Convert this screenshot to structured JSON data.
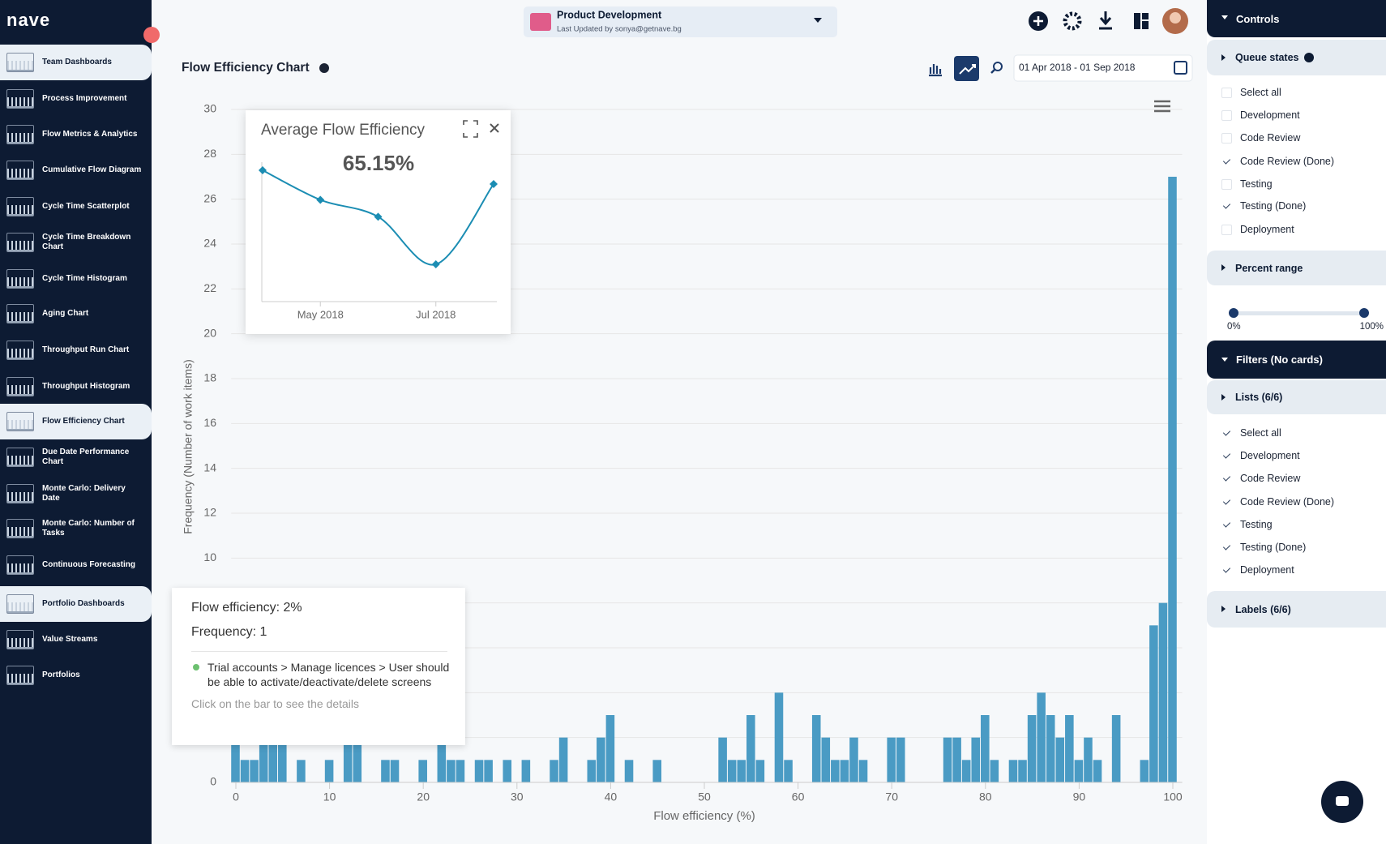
{
  "sidebar": {
    "logo": "nave",
    "items": [
      {
        "label": "Team Dashboards",
        "section": true
      },
      {
        "label": "Process Improvement"
      },
      {
        "label": "Flow Metrics & Analytics"
      },
      {
        "label": "Cumulative Flow Diagram"
      },
      {
        "label": "Cycle Time Scatterplot"
      },
      {
        "label": "Cycle Time Breakdown Chart"
      },
      {
        "label": "Cycle Time Histogram"
      },
      {
        "label": "Aging Chart"
      },
      {
        "label": "Throughput Run Chart"
      },
      {
        "label": "Throughput Histogram"
      },
      {
        "label": "Flow Efficiency Chart",
        "active": true
      },
      {
        "label": "Due Date Performance Chart"
      },
      {
        "label": "Monte Carlo: Delivery Date"
      },
      {
        "label": "Monte Carlo: Number of Tasks"
      },
      {
        "label": "Continuous Forecasting"
      },
      {
        "label": "Portfolio Dashboards",
        "section": true
      },
      {
        "label": "Value Streams"
      },
      {
        "label": "Portfolios"
      }
    ]
  },
  "header": {
    "project": "Product Development",
    "updated": "Last Updated by sonya@getnave.bg"
  },
  "toolbar": {
    "date_range": "01 Apr 2018 - 01 Sep 2018"
  },
  "chart_data": [
    {
      "type": "histogram",
      "title": "Flow Efficiency Chart",
      "x_label": "Flow efficiency (%)",
      "y_label": "Frequency (Number of work items)",
      "color": "#4a9bc4",
      "grid": true,
      "x": [
        0,
        1,
        2,
        3,
        4,
        5,
        6,
        7,
        8,
        9,
        10,
        11,
        12,
        13,
        14,
        15,
        16,
        17,
        18,
        19,
        20,
        21,
        22,
        23,
        24,
        25,
        26,
        27,
        28,
        29,
        30,
        31,
        32,
        33,
        34,
        35,
        36,
        37,
        38,
        39,
        40,
        41,
        42,
        43,
        44,
        45,
        46,
        47,
        48,
        49,
        50,
        51,
        52,
        53,
        54,
        55,
        56,
        57,
        58,
        59,
        60,
        61,
        62,
        63,
        64,
        65,
        66,
        67,
        68,
        69,
        70,
        71,
        72,
        73,
        74,
        75,
        76,
        77,
        78,
        79,
        80,
        81,
        82,
        83,
        84,
        85,
        86,
        87,
        88,
        89,
        90,
        91,
        92,
        93,
        94,
        95,
        96,
        97,
        98,
        99,
        100
      ],
      "values": [
        2,
        1,
        1,
        2,
        2,
        2,
        0,
        1,
        0,
        0,
        1,
        0,
        2,
        2,
        0,
        0,
        1,
        1,
        0,
        0,
        1,
        0,
        2,
        1,
        1,
        0,
        1,
        1,
        0,
        1,
        0,
        1,
        0,
        0,
        1,
        2,
        0,
        0,
        1,
        2,
        3,
        0,
        1,
        0,
        0,
        1,
        0,
        0,
        0,
        0,
        0,
        0,
        2,
        1,
        1,
        3,
        1,
        0,
        4,
        1,
        0,
        0,
        3,
        2,
        1,
        1,
        2,
        1,
        0,
        0,
        2,
        2,
        0,
        0,
        0,
        0,
        2,
        2,
        1,
        2,
        3,
        1,
        0,
        1,
        1,
        3,
        4,
        3,
        2,
        3,
        1,
        2,
        1,
        0,
        3,
        0,
        0,
        1,
        7,
        8,
        27
      ],
      "xlim": [
        -0.5,
        101
      ],
      "xticks": [
        0,
        10,
        20,
        30,
        40,
        50,
        60,
        70,
        80,
        90,
        100
      ],
      "ylim": [
        0,
        30
      ],
      "yticks": [
        0,
        2,
        4,
        6,
        8,
        10,
        12,
        14,
        16,
        18,
        20,
        22,
        24,
        26,
        28,
        30
      ]
    },
    {
      "type": "line",
      "title": "Average Flow Efficiency",
      "summary": "65.15%",
      "color": "#1b8db3",
      "categories": [
        null,
        "May 2018",
        null,
        "Jul 2018",
        null
      ],
      "values": [
        68.2,
        65.4,
        63.8,
        59.3,
        66.9
      ]
    }
  ],
  "tooltip": {
    "line1": "Flow efficiency: 2%",
    "line2": "Frequency: 1",
    "item": "Trial accounts > Manage licences > User should be able to activate/deactivate/delete screens",
    "hint": "Click on the bar to see the details"
  },
  "controls": {
    "title": "Controls",
    "queue_states": {
      "title": "Queue states",
      "items": [
        {
          "label": "Select all",
          "checked": false
        },
        {
          "label": "Development",
          "checked": false
        },
        {
          "label": "Code Review",
          "checked": false
        },
        {
          "label": "Code Review (Done)",
          "checked": true
        },
        {
          "label": "Testing",
          "checked": false
        },
        {
          "label": "Testing (Done)",
          "checked": true
        },
        {
          "label": "Deployment",
          "checked": false
        }
      ]
    },
    "percent_range": {
      "title": "Percent range",
      "min_label": "0%",
      "max_label": "100%"
    },
    "filters": {
      "title": "Filters (No cards)",
      "lists": {
        "title": "Lists  (6/6)",
        "items": [
          {
            "label": "Select all",
            "checked": true
          },
          {
            "label": "Development",
            "checked": true
          },
          {
            "label": "Code Review",
            "checked": true
          },
          {
            "label": "Code Review (Done)",
            "checked": true
          },
          {
            "label": "Testing",
            "checked": true
          },
          {
            "label": "Testing (Done)",
            "checked": true
          },
          {
            "label": "Deployment",
            "checked": true
          }
        ]
      },
      "labels": {
        "title": "Labels  (6/6)"
      }
    }
  }
}
